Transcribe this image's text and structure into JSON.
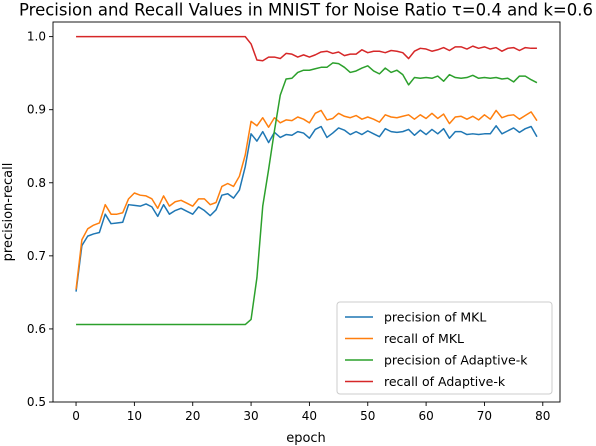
{
  "chart_data": {
    "type": "line",
    "title": "Precision and Recall Values in MNIST for Noise Ratio τ=0.4 and k=0.6",
    "xlabel": "epoch",
    "ylabel": "precision-recall",
    "xlim": [
      -3.95,
      82.95
    ],
    "ylim": [
      0.5,
      1.02
    ],
    "xticks": [
      0,
      10,
      20,
      30,
      40,
      50,
      60,
      70,
      80
    ],
    "xtick_labels": [
      "0",
      "10",
      "20",
      "30",
      "40",
      "50",
      "60",
      "70",
      "80"
    ],
    "yticks": [
      0.5,
      0.6,
      0.7,
      0.8,
      0.9,
      1.0
    ],
    "ytick_labels": [
      "0.5",
      "0.6",
      "0.7",
      "0.8",
      "0.9",
      "1.0"
    ],
    "grid": false,
    "legend_position": "lower-right",
    "x": [
      0,
      1,
      2,
      3,
      4,
      5,
      6,
      7,
      8,
      9,
      10,
      11,
      12,
      13,
      14,
      15,
      16,
      17,
      18,
      19,
      20,
      21,
      22,
      23,
      24,
      25,
      26,
      27,
      28,
      29,
      30,
      31,
      32,
      33,
      34,
      35,
      36,
      37,
      38,
      39,
      40,
      41,
      42,
      43,
      44,
      45,
      46,
      47,
      48,
      49,
      50,
      51,
      52,
      53,
      54,
      55,
      56,
      57,
      58,
      59,
      60,
      61,
      62,
      63,
      64,
      65,
      66,
      67,
      68,
      69,
      70,
      71,
      72,
      73,
      74,
      75,
      76,
      77,
      78,
      79
    ],
    "series": [
      {
        "name": "precision of MKL",
        "color": "#1f77b4",
        "values": [
          0.651,
          0.714,
          0.727,
          0.73,
          0.732,
          0.757,
          0.744,
          0.745,
          0.746,
          0.77,
          0.769,
          0.768,
          0.771,
          0.767,
          0.754,
          0.77,
          0.757,
          0.762,
          0.765,
          0.761,
          0.757,
          0.767,
          0.762,
          0.755,
          0.763,
          0.783,
          0.785,
          0.779,
          0.79,
          0.822,
          0.867,
          0.857,
          0.87,
          0.855,
          0.869,
          0.862,
          0.866,
          0.865,
          0.87,
          0.868,
          0.861,
          0.873,
          0.877,
          0.862,
          0.868,
          0.875,
          0.872,
          0.866,
          0.87,
          0.866,
          0.871,
          0.867,
          0.863,
          0.874,
          0.87,
          0.869,
          0.87,
          0.873,
          0.865,
          0.872,
          0.866,
          0.873,
          0.867,
          0.874,
          0.861,
          0.87,
          0.87,
          0.866,
          0.867,
          0.866,
          0.867,
          0.867,
          0.878,
          0.867,
          0.871,
          0.875,
          0.869,
          0.874,
          0.877,
          0.863
        ]
      },
      {
        "name": "recall of MKL",
        "color": "#ff7f0e",
        "values": [
          0.654,
          0.722,
          0.737,
          0.742,
          0.745,
          0.77,
          0.757,
          0.757,
          0.759,
          0.778,
          0.786,
          0.783,
          0.782,
          0.778,
          0.765,
          0.782,
          0.768,
          0.774,
          0.776,
          0.772,
          0.768,
          0.778,
          0.778,
          0.77,
          0.773,
          0.795,
          0.799,
          0.795,
          0.809,
          0.838,
          0.884,
          0.878,
          0.889,
          0.876,
          0.889,
          0.882,
          0.886,
          0.885,
          0.89,
          0.887,
          0.882,
          0.895,
          0.899,
          0.886,
          0.888,
          0.895,
          0.891,
          0.889,
          0.892,
          0.887,
          0.89,
          0.887,
          0.883,
          0.893,
          0.89,
          0.889,
          0.891,
          0.893,
          0.887,
          0.893,
          0.888,
          0.895,
          0.888,
          0.894,
          0.881,
          0.89,
          0.891,
          0.887,
          0.891,
          0.886,
          0.893,
          0.887,
          0.899,
          0.889,
          0.892,
          0.893,
          0.887,
          0.892,
          0.897,
          0.885
        ]
      },
      {
        "name": "precision of Adaptive-k",
        "color": "#2ca02c",
        "values": [
          0.606,
          0.606,
          0.606,
          0.606,
          0.606,
          0.606,
          0.606,
          0.606,
          0.606,
          0.606,
          0.606,
          0.606,
          0.606,
          0.606,
          0.606,
          0.606,
          0.606,
          0.606,
          0.606,
          0.606,
          0.606,
          0.606,
          0.606,
          0.606,
          0.606,
          0.606,
          0.606,
          0.606,
          0.606,
          0.606,
          0.613,
          0.67,
          0.768,
          0.818,
          0.871,
          0.92,
          0.942,
          0.943,
          0.951,
          0.954,
          0.954,
          0.956,
          0.958,
          0.958,
          0.964,
          0.963,
          0.958,
          0.951,
          0.953,
          0.957,
          0.96,
          0.953,
          0.949,
          0.957,
          0.951,
          0.954,
          0.948,
          0.934,
          0.944,
          0.943,
          0.944,
          0.943,
          0.946,
          0.939,
          0.948,
          0.944,
          0.943,
          0.944,
          0.947,
          0.943,
          0.944,
          0.943,
          0.944,
          0.942,
          0.943,
          0.938,
          0.946,
          0.946,
          0.941,
          0.937
        ]
      },
      {
        "name": "recall of Adaptive-k",
        "color": "#d62728",
        "values": [
          1.0,
          1.0,
          1.0,
          1.0,
          1.0,
          1.0,
          1.0,
          1.0,
          1.0,
          1.0,
          1.0,
          1.0,
          1.0,
          1.0,
          1.0,
          1.0,
          1.0,
          1.0,
          1.0,
          1.0,
          1.0,
          1.0,
          1.0,
          1.0,
          1.0,
          1.0,
          1.0,
          1.0,
          1.0,
          1.0,
          0.99,
          0.968,
          0.967,
          0.972,
          0.972,
          0.97,
          0.977,
          0.976,
          0.972,
          0.975,
          0.972,
          0.975,
          0.979,
          0.98,
          0.977,
          0.979,
          0.974,
          0.976,
          0.976,
          0.982,
          0.978,
          0.98,
          0.98,
          0.978,
          0.981,
          0.98,
          0.978,
          0.97,
          0.98,
          0.984,
          0.983,
          0.98,
          0.982,
          0.985,
          0.981,
          0.986,
          0.986,
          0.983,
          0.987,
          0.984,
          0.986,
          0.983,
          0.985,
          0.98,
          0.984,
          0.985,
          0.981,
          0.985,
          0.984,
          0.984
        ]
      }
    ]
  }
}
